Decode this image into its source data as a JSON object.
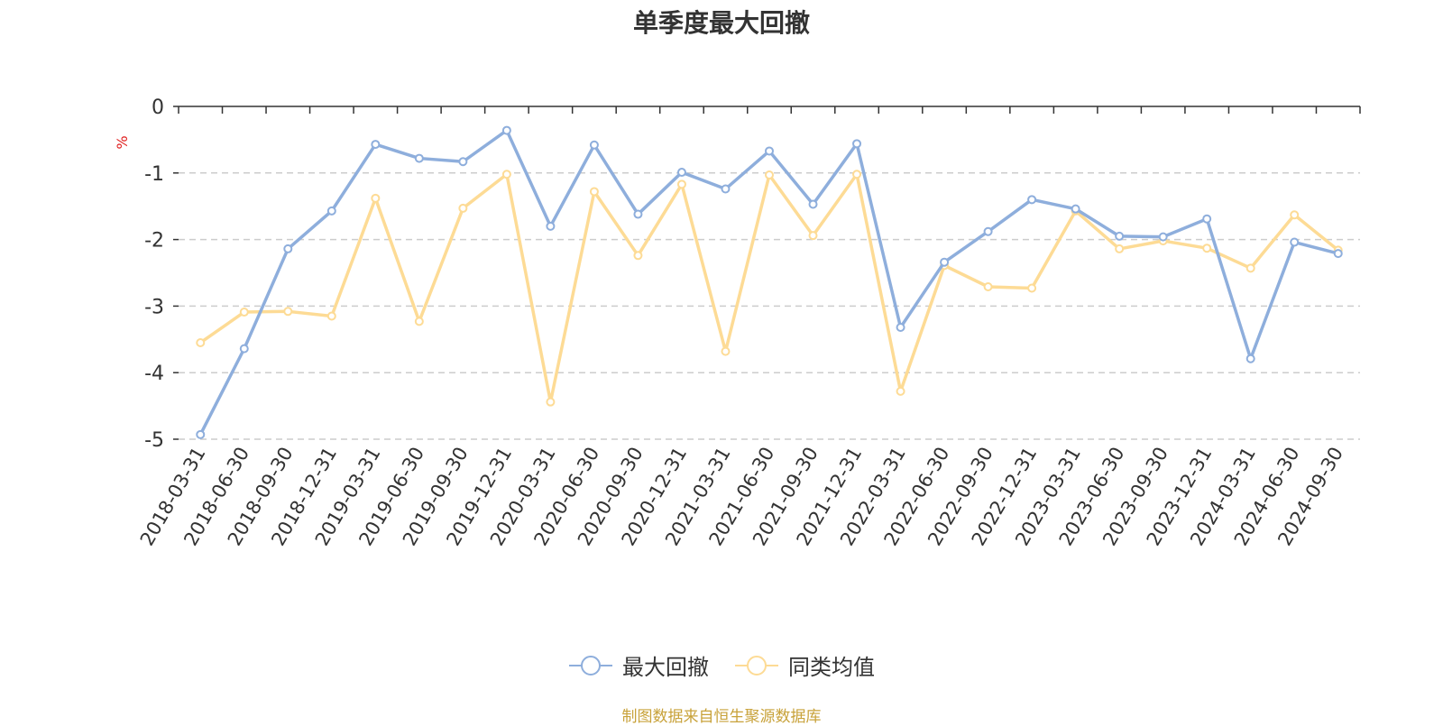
{
  "chart_data": {
    "type": "line",
    "title": "单季度最大回撤",
    "ylabel": "%",
    "ylim": [
      -5,
      0
    ],
    "yticks": [
      0,
      -1,
      -2,
      -3,
      -4,
      -5
    ],
    "grid": true,
    "legend_position": "bottom",
    "categories": [
      "2018-03-31",
      "2018-06-30",
      "2018-09-30",
      "2018-12-31",
      "2019-03-31",
      "2019-06-30",
      "2019-09-30",
      "2019-12-31",
      "2020-03-31",
      "2020-06-30",
      "2020-09-30",
      "2020-12-31",
      "2021-03-31",
      "2021-06-30",
      "2021-09-30",
      "2021-12-31",
      "2022-03-31",
      "2022-06-30",
      "2022-09-30",
      "2022-12-31",
      "2023-03-31",
      "2023-06-30",
      "2023-09-30",
      "2023-12-31",
      "2024-03-31",
      "2024-06-30",
      "2024-09-30"
    ],
    "series": [
      {
        "name": "最大回撤",
        "color": "#8eaedc",
        "values": [
          -4.93,
          -3.64,
          -2.14,
          -1.57,
          -0.57,
          -0.78,
          -0.83,
          -0.36,
          -1.8,
          -0.58,
          -1.62,
          -0.99,
          -1.24,
          -0.67,
          -1.47,
          -0.56,
          -3.32,
          -2.34,
          -1.88,
          -1.4,
          -1.54,
          -1.95,
          -1.96,
          -1.69,
          -3.79,
          -2.04,
          -2.21
        ]
      },
      {
        "name": "同类均值",
        "color": "#fddb95",
        "values": [
          -3.55,
          -3.09,
          -3.08,
          -3.15,
          -1.38,
          -3.23,
          -1.53,
          -1.02,
          -4.44,
          -1.28,
          -2.24,
          -1.17,
          -3.68,
          -1.03,
          -1.94,
          -1.02,
          -4.28,
          -2.39,
          -2.71,
          -2.73,
          -1.57,
          -2.14,
          -2.02,
          -2.13,
          -2.43,
          -1.63,
          -2.16
        ]
      }
    ]
  },
  "source": "制图数据来自恒生聚源数据库"
}
